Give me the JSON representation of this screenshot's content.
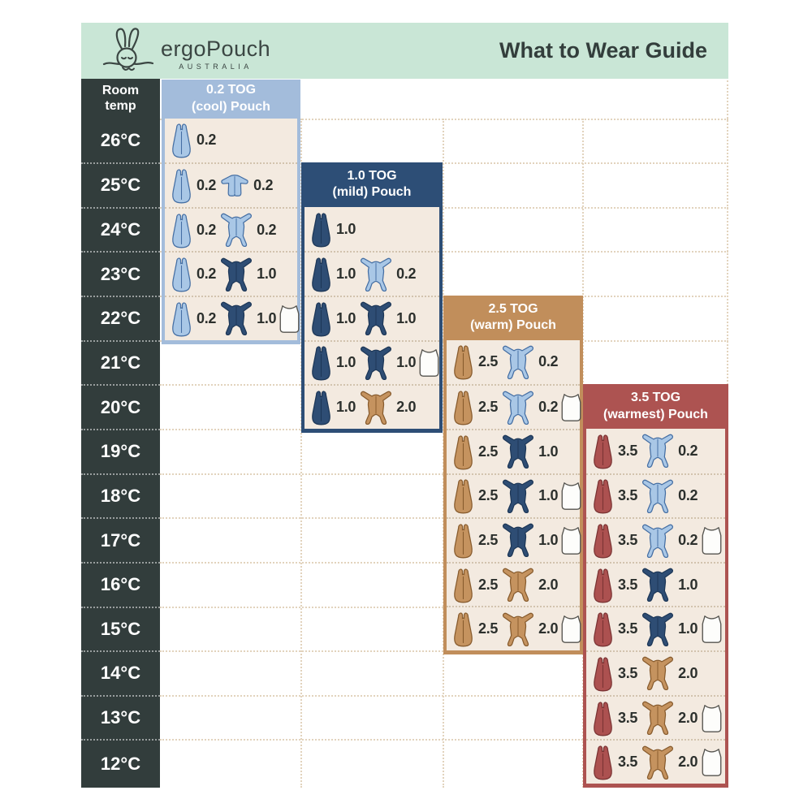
{
  "page": {
    "title": "What to Wear Guide",
    "brand": "ergoPouch",
    "brand_sub": "AUSTRALIA"
  },
  "temp_column": {
    "header_line1": "Room",
    "header_line2": "temp",
    "temps": [
      "26°C",
      "25°C",
      "24°C",
      "23°C",
      "22°C",
      "21°C",
      "20°C",
      "19°C",
      "18°C",
      "17°C",
      "16°C",
      "15°C",
      "14°C",
      "13°C",
      "12°C"
    ]
  },
  "colors": {
    "mint": "#c9e6d6",
    "dark": "#323d3c",
    "cream": "#f3eae0",
    "grid_line": "#e2d3bd",
    "text": "#2c302d",
    "icon_palette": {
      "lightblue": {
        "fill": "#a9c7e6",
        "stroke": "#446ea3"
      },
      "navy": {
        "fill": "#2e4d74",
        "stroke": "#1d3757"
      },
      "tan": {
        "fill": "#c5935f",
        "stroke": "#875b2d"
      },
      "red": {
        "fill": "#ac5150",
        "stroke": "#7a3333"
      },
      "white": {
        "fill": "#fdfdfb",
        "stroke": "#55544f"
      }
    }
  },
  "panels": [
    {
      "id": "0-2-tog-cool",
      "title_line1": "0.2 TOG",
      "title_line2": "(cool) Pouch",
      "theme": "#a3bcdb",
      "rows": [
        {
          "temp": "26°C",
          "items": [
            {
              "icon": "pouch",
              "color": "lightblue",
              "value": "0.2"
            }
          ]
        },
        {
          "temp": "25°C",
          "items": [
            {
              "icon": "pouch",
              "color": "lightblue",
              "value": "0.2"
            },
            {
              "icon": "romper",
              "color": "lightblue",
              "value": "0.2"
            }
          ]
        },
        {
          "temp": "24°C",
          "items": [
            {
              "icon": "pouch",
              "color": "lightblue",
              "value": "0.2"
            },
            {
              "icon": "onesie",
              "color": "lightblue",
              "value": "0.2"
            }
          ]
        },
        {
          "temp": "23°C",
          "items": [
            {
              "icon": "pouch",
              "color": "lightblue",
              "value": "0.2"
            },
            {
              "icon": "onesie",
              "color": "navy",
              "value": "1.0"
            }
          ]
        },
        {
          "temp": "22°C",
          "items": [
            {
              "icon": "pouch",
              "color": "lightblue",
              "value": "0.2"
            },
            {
              "icon": "onesie",
              "color": "navy",
              "value": "1.0"
            },
            {
              "icon": "singlet",
              "color": "white",
              "value": null
            }
          ]
        }
      ]
    },
    {
      "id": "1-0-tog-mild",
      "title_line1": "1.0 TOG",
      "title_line2": "(mild) Pouch",
      "theme": "#2d4e76",
      "rows": [
        {
          "temp": "24°C",
          "items": [
            {
              "icon": "pouch",
              "color": "navy",
              "value": "1.0"
            }
          ]
        },
        {
          "temp": "23°C",
          "items": [
            {
              "icon": "pouch",
              "color": "navy",
              "value": "1.0"
            },
            {
              "icon": "onesie",
              "color": "lightblue",
              "value": "0.2"
            }
          ]
        },
        {
          "temp": "22°C",
          "items": [
            {
              "icon": "pouch",
              "color": "navy",
              "value": "1.0"
            },
            {
              "icon": "onesie",
              "color": "navy",
              "value": "1.0"
            }
          ]
        },
        {
          "temp": "21°C",
          "items": [
            {
              "icon": "pouch",
              "color": "navy",
              "value": "1.0"
            },
            {
              "icon": "onesie",
              "color": "navy",
              "value": "1.0"
            },
            {
              "icon": "singlet",
              "color": "white",
              "value": null
            }
          ]
        },
        {
          "temp": "20°C",
          "items": [
            {
              "icon": "pouch",
              "color": "navy",
              "value": "1.0"
            },
            {
              "icon": "onesie",
              "color": "tan",
              "value": "2.0"
            }
          ]
        }
      ]
    },
    {
      "id": "2-5-tog-warm",
      "title_line1": "2.5 TOG",
      "title_line2": "(warm) Pouch",
      "theme": "#c18e5b",
      "rows": [
        {
          "temp": "21°C",
          "items": [
            {
              "icon": "pouch",
              "color": "tan",
              "value": "2.5"
            },
            {
              "icon": "onesie",
              "color": "lightblue",
              "value": "0.2"
            }
          ]
        },
        {
          "temp": "20°C",
          "items": [
            {
              "icon": "pouch",
              "color": "tan",
              "value": "2.5"
            },
            {
              "icon": "onesie",
              "color": "lightblue",
              "value": "0.2"
            },
            {
              "icon": "singlet",
              "color": "white",
              "value": null
            }
          ]
        },
        {
          "temp": "19°C",
          "items": [
            {
              "icon": "pouch",
              "color": "tan",
              "value": "2.5"
            },
            {
              "icon": "onesie",
              "color": "navy",
              "value": "1.0"
            }
          ]
        },
        {
          "temp": "18°C",
          "items": [
            {
              "icon": "pouch",
              "color": "tan",
              "value": "2.5"
            },
            {
              "icon": "onesie",
              "color": "navy",
              "value": "1.0"
            },
            {
              "icon": "singlet",
              "color": "white",
              "value": null
            }
          ]
        },
        {
          "temp": "17°C",
          "items": [
            {
              "icon": "pouch",
              "color": "tan",
              "value": "2.5"
            },
            {
              "icon": "onesie",
              "color": "navy",
              "value": "1.0"
            },
            {
              "icon": "singlet",
              "color": "white",
              "value": null
            }
          ]
        },
        {
          "temp": "16°C",
          "items": [
            {
              "icon": "pouch",
              "color": "tan",
              "value": "2.5"
            },
            {
              "icon": "onesie",
              "color": "tan",
              "value": "2.0"
            }
          ]
        },
        {
          "temp": "15°C",
          "items": [
            {
              "icon": "pouch",
              "color": "tan",
              "value": "2.5"
            },
            {
              "icon": "onesie",
              "color": "tan",
              "value": "2.0"
            },
            {
              "icon": "singlet",
              "color": "white",
              "value": null
            }
          ]
        }
      ]
    },
    {
      "id": "3-5-tog-warmest",
      "title_line1": "3.5 TOG",
      "title_line2": "(warmest) Pouch",
      "theme": "#ad5351",
      "rows": [
        {
          "temp": "19°C",
          "items": [
            {
              "icon": "pouch",
              "color": "red",
              "value": "3.5"
            },
            {
              "icon": "onesie",
              "color": "lightblue",
              "value": "0.2"
            }
          ]
        },
        {
          "temp": "18°C",
          "items": [
            {
              "icon": "pouch",
              "color": "red",
              "value": "3.5"
            },
            {
              "icon": "onesie",
              "color": "lightblue",
              "value": "0.2"
            }
          ]
        },
        {
          "temp": "17°C",
          "items": [
            {
              "icon": "pouch",
              "color": "red",
              "value": "3.5"
            },
            {
              "icon": "onesie",
              "color": "lightblue",
              "value": "0.2"
            },
            {
              "icon": "singlet",
              "color": "white",
              "value": null
            }
          ]
        },
        {
          "temp": "16°C",
          "items": [
            {
              "icon": "pouch",
              "color": "red",
              "value": "3.5"
            },
            {
              "icon": "onesie",
              "color": "navy",
              "value": "1.0"
            }
          ]
        },
        {
          "temp": "15°C",
          "items": [
            {
              "icon": "pouch",
              "color": "red",
              "value": "3.5"
            },
            {
              "icon": "onesie",
              "color": "navy",
              "value": "1.0"
            },
            {
              "icon": "singlet",
              "color": "white",
              "value": null
            }
          ]
        },
        {
          "temp": "14°C",
          "items": [
            {
              "icon": "pouch",
              "color": "red",
              "value": "3.5"
            },
            {
              "icon": "onesie",
              "color": "tan",
              "value": "2.0"
            }
          ]
        },
        {
          "temp": "13°C",
          "items": [
            {
              "icon": "pouch",
              "color": "red",
              "value": "3.5"
            },
            {
              "icon": "onesie",
              "color": "tan",
              "value": "2.0"
            },
            {
              "icon": "singlet",
              "color": "white",
              "value": null
            }
          ]
        },
        {
          "temp": "12°C",
          "items": [
            {
              "icon": "pouch",
              "color": "red",
              "value": "3.5"
            },
            {
              "icon": "onesie",
              "color": "tan",
              "value": "2.0"
            },
            {
              "icon": "singlet",
              "color": "white",
              "value": null
            }
          ]
        }
      ]
    }
  ]
}
